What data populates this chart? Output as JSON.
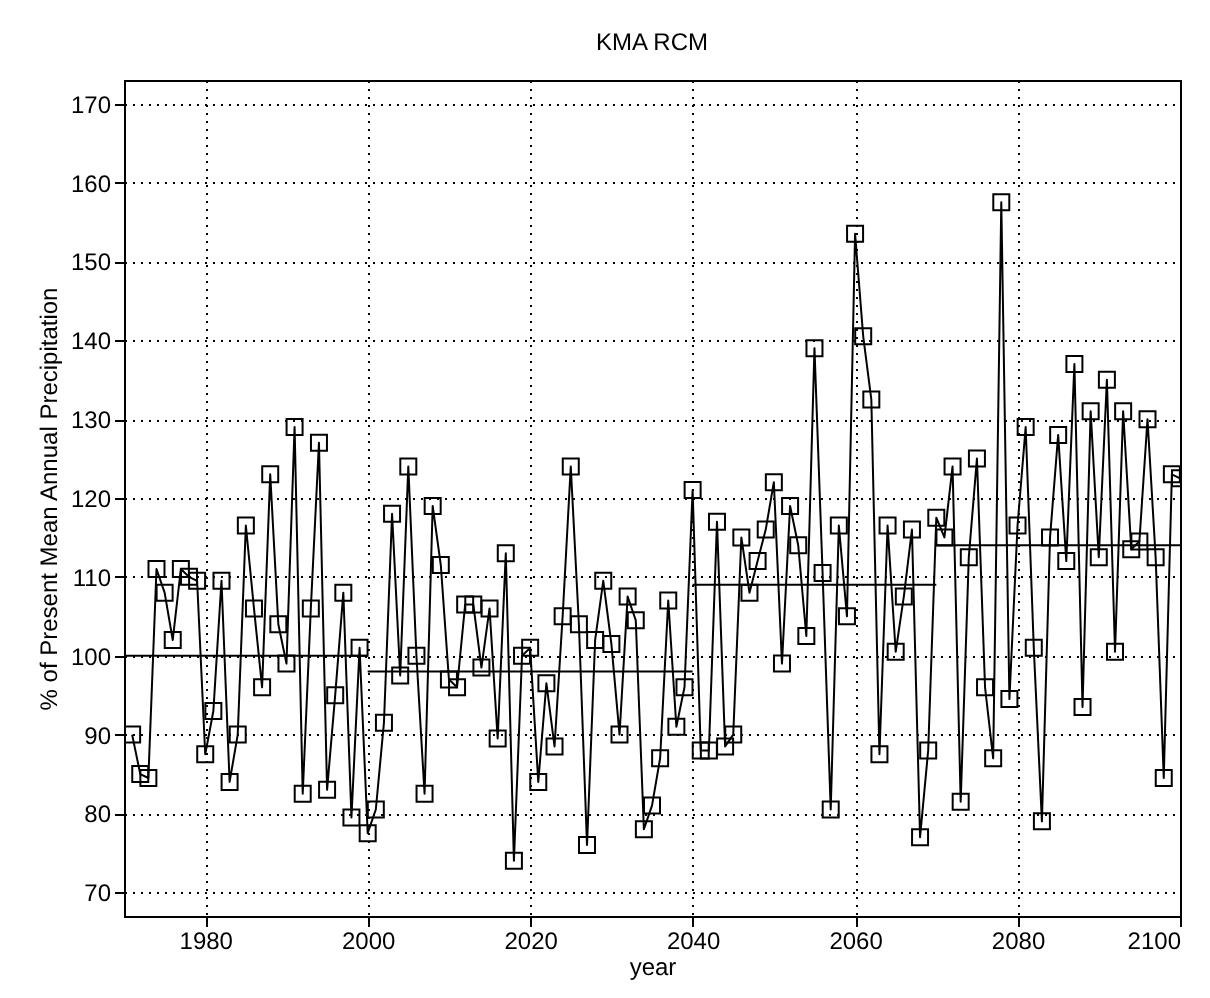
{
  "chart_data": {
    "type": "line",
    "title": "KMA RCM",
    "xlabel": "year",
    "ylabel": "% of Present Mean Annual Precipitation",
    "xlim": [
      1970,
      2100
    ],
    "ylim": [
      67,
      173
    ],
    "xticks": [
      1980,
      2000,
      2020,
      2040,
      2060,
      2080,
      2100
    ],
    "yticks": [
      70,
      80,
      90,
      100,
      110,
      120,
      130,
      140,
      150,
      160,
      170
    ],
    "grid": true,
    "series": [
      {
        "color": "#000000",
        "marker": "square",
        "line_style": "solid",
        "x": [
          1971,
          1972,
          1973,
          1974,
          1975,
          1976,
          1977,
          1978,
          1979,
          1980,
          1981,
          1982,
          1983,
          1984,
          1985,
          1986,
          1987,
          1988,
          1989,
          1990,
          1991,
          1992,
          1993,
          1994,
          1995,
          1996,
          1997,
          1998,
          1999,
          2000,
          2001,
          2002,
          2003,
          2004,
          2005,
          2006,
          2007,
          2008,
          2009,
          2010,
          2011,
          2012,
          2013,
          2014,
          2015,
          2016,
          2017,
          2018,
          2019,
          2020,
          2021,
          2022,
          2023,
          2024,
          2025,
          2026,
          2027,
          2028,
          2029,
          2030,
          2031,
          2032,
          2033,
          2034,
          2035,
          2036,
          2037,
          2038,
          2039,
          2040,
          2041,
          2042,
          2043,
          2044,
          2045,
          2046,
          2047,
          2048,
          2049,
          2050,
          2051,
          2052,
          2053,
          2054,
          2055,
          2056,
          2057,
          2058,
          2059,
          2060,
          2061,
          2062,
          2063,
          2064,
          2065,
          2066,
          2067,
          2068,
          2069,
          2070,
          2071,
          2072,
          2073,
          2074,
          2075,
          2076,
          2077,
          2078,
          2079,
          2080,
          2081,
          2082,
          2083,
          2084,
          2085,
          2086,
          2087,
          2088,
          2089,
          2090,
          2091,
          2092,
          2093,
          2094,
          2095,
          2096,
          2097,
          2098,
          2099,
          2100
        ],
        "values": [
          90,
          85,
          84.5,
          111,
          108,
          102,
          111,
          110,
          109.5,
          87.5,
          93,
          109.5,
          84,
          90,
          116.5,
          106,
          96,
          123,
          104,
          99,
          129,
          82.5,
          106,
          127,
          83,
          95,
          108,
          79.5,
          101,
          77.5,
          80.5,
          91.5,
          118,
          97.5,
          124,
          100,
          82.5,
          119,
          111.5,
          97,
          96,
          106.5,
          106.5,
          98.5,
          106,
          89.5,
          113,
          74,
          100,
          101,
          84,
          96.5,
          88.5,
          105,
          124,
          104,
          76,
          102,
          109.5,
          101.5,
          90,
          107.5,
          104.5,
          78,
          81,
          87,
          107,
          91,
          96,
          121,
          88,
          88,
          117,
          88.5,
          90,
          115,
          108,
          112,
          116,
          122,
          99,
          119,
          114,
          102.5,
          139,
          110.5,
          80.5,
          116.5,
          105,
          153.5,
          140.5,
          132.5,
          87.5,
          116.5,
          100.5,
          107.5,
          116,
          77,
          88,
          117.5,
          115,
          124,
          81.5,
          112.5,
          125,
          96,
          87,
          157.5,
          94.5,
          116.5,
          129,
          101,
          79,
          115,
          128,
          112,
          137,
          93.5,
          131,
          112.5,
          135,
          100.5,
          131,
          113.5,
          114.5,
          130,
          112.5,
          84.5,
          123,
          122.5
        ]
      },
      {
        "color": "#000000",
        "marker": "none",
        "line_style": "solid",
        "x": [
          1970,
          2000
        ],
        "values": [
          100,
          100
        ]
      },
      {
        "color": "#000000",
        "marker": "none",
        "line_style": "solid",
        "x": [
          2000,
          2040
        ],
        "values": [
          98,
          98
        ]
      },
      {
        "color": "#000000",
        "marker": "none",
        "line_style": "solid",
        "x": [
          2040,
          2070
        ],
        "values": [
          109,
          109
        ]
      },
      {
        "color": "#000000",
        "marker": "none",
        "line_style": "solid",
        "x": [
          2070,
          2100
        ],
        "values": [
          114,
          114
        ]
      }
    ]
  }
}
